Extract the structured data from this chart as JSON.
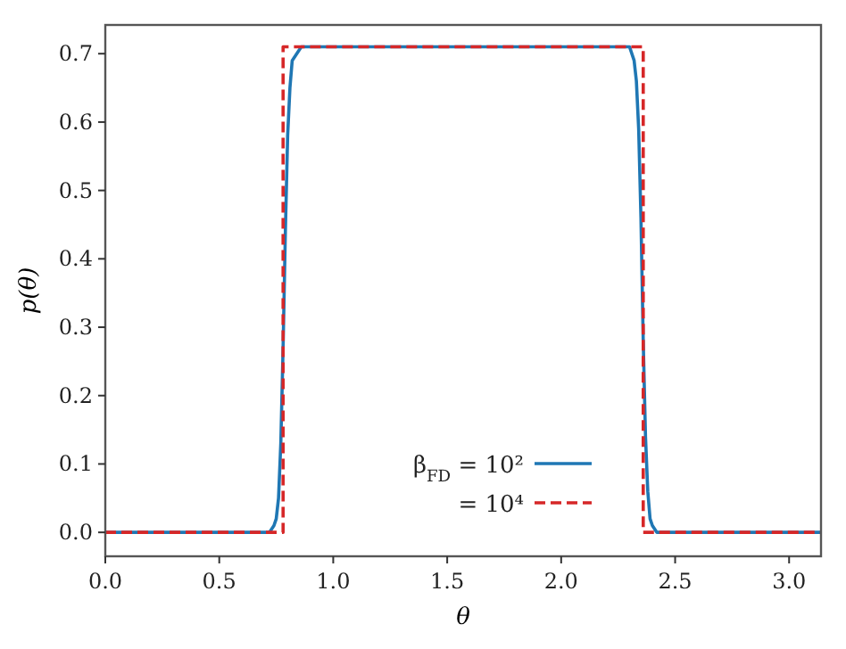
{
  "chart_data": {
    "type": "line",
    "xlabel": "θ",
    "ylabel": "p(θ)",
    "xlim": [
      0,
      3.14
    ],
    "ylim": [
      -0.035,
      0.742
    ],
    "xticks": [
      {
        "value": 0,
        "label": "0.0"
      },
      0.5,
      {
        "value": 1,
        "label": "1.0"
      },
      1.5,
      {
        "value": 2,
        "label": "2.0"
      },
      2.5,
      {
        "value": 3,
        "label": "3.0"
      }
    ],
    "yticks": [
      {
        "value": 0,
        "label": "0.0"
      },
      0.1,
      0.2,
      0.3,
      0.4,
      0.5,
      0.6,
      0.7
    ],
    "legend": "bottom",
    "grid": false,
    "series": [
      {
        "name": "β$_{FD}$ = 10²",
        "color": "#1f77b4",
        "line_style": "solid",
        "x": [
          0,
          0.72,
          0.74,
          0.75,
          0.76,
          0.77,
          0.78,
          0.79,
          0.8,
          0.81,
          0.82,
          0.84,
          0.86,
          2.3,
          2.32,
          2.33,
          2.34,
          2.35,
          2.36,
          2.37,
          2.38,
          2.39,
          2.4,
          2.42,
          3.14
        ],
        "values": [
          0,
          0,
          0.01,
          0.02,
          0.05,
          0.13,
          0.27,
          0.44,
          0.58,
          0.65,
          0.69,
          0.7,
          0.71,
          0.71,
          0.69,
          0.66,
          0.59,
          0.46,
          0.28,
          0.14,
          0.06,
          0.02,
          0.01,
          0,
          0
        ]
      },
      {
        "name": "= 10⁴",
        "color": "#d62728",
        "line_style": "dashed",
        "x": [
          0,
          0.78,
          0.78,
          2.36,
          2.36,
          3.14
        ],
        "values": [
          0,
          0,
          0.71,
          0.71,
          0,
          0
        ]
      }
    ]
  }
}
